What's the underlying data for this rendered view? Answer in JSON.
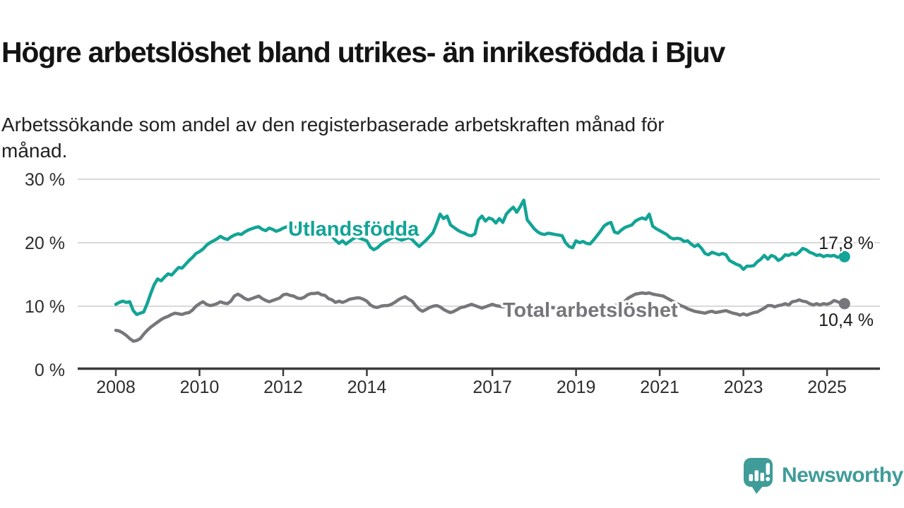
{
  "header": {
    "title": "Högre arbetslöshet bland utrikes- än inrikesfödda i Bjuv",
    "subtitle_line1": "Arbetssökande som andel av den registerbaserade arbetskraften månad för",
    "subtitle_line2": "månad."
  },
  "branding": {
    "logo_text": "Newsworthy",
    "logo_color": "#3f9c99",
    "logo_icon": "speech-bubble-bar-chart-exclamation"
  },
  "chart_data": {
    "type": "line",
    "x_unit": "month",
    "x_start": "2008-01",
    "x_end": "2025-06",
    "ylim": [
      0,
      30
    ],
    "grid": "horizontal",
    "y_ticks": [
      {
        "value": 30,
        "label": "30 %"
      },
      {
        "value": 20,
        "label": "20 %"
      },
      {
        "value": 10,
        "label": "10 %"
      },
      {
        "value": 0,
        "label": "0 %"
      }
    ],
    "x_ticks": [
      {
        "year": 2008,
        "label": "2008"
      },
      {
        "year": 2010,
        "label": "2010"
      },
      {
        "year": 2012,
        "label": "2012"
      },
      {
        "year": 2014,
        "label": "2014"
      },
      {
        "year": 2017,
        "label": "2017"
      },
      {
        "year": 2019,
        "label": "2019"
      },
      {
        "year": 2021,
        "label": "2021"
      },
      {
        "year": 2023,
        "label": "2023"
      },
      {
        "year": 2025,
        "label": "2025"
      }
    ],
    "series": [
      {
        "name": "Utlandsfödda",
        "color": "#12a496",
        "end_label": "17,8 %",
        "end_value": 17.8,
        "values": [
          10.3,
          10.6,
          10.8,
          10.6,
          10.7,
          9.3,
          8.7,
          8.9,
          9.1,
          10.4,
          12.0,
          13.4,
          14.3,
          14.0,
          14.6,
          15.1,
          14.9,
          15.5,
          16.1,
          16.0,
          16.6,
          17.2,
          17.7,
          18.3,
          18.6,
          19.0,
          19.6,
          20.0,
          20.3,
          20.6,
          21.0,
          20.7,
          20.5,
          20.9,
          21.2,
          21.4,
          21.3,
          21.7,
          22.0,
          22.2,
          22.4,
          22.5,
          22.1,
          21.9,
          22.3,
          22.1,
          21.8,
          22.0,
          22.3,
          22.5,
          22.6,
          22.4,
          22.5,
          22.8,
          22.6,
          22.3,
          22.5,
          22.2,
          22.0,
          21.8,
          21.5,
          21.2,
          21.0,
          20.4,
          19.9,
          20.3,
          19.8,
          20.2,
          20.6,
          20.9,
          20.7,
          20.5,
          20.3,
          19.3,
          18.9,
          19.2,
          19.7,
          20.1,
          20.4,
          20.7,
          20.9,
          20.6,
          20.4,
          20.6,
          20.8,
          20.5,
          19.9,
          19.4,
          19.9,
          20.4,
          21.0,
          21.6,
          23.0,
          24.5,
          23.8,
          24.2,
          22.8,
          22.4,
          22.0,
          21.7,
          21.5,
          21.2,
          21.1,
          21.4,
          23.6,
          24.2,
          23.4,
          23.9,
          23.7,
          23.1,
          23.8,
          23.2,
          24.5,
          25.1,
          25.6,
          24.8,
          25.7,
          26.7,
          23.6,
          22.9,
          22.2,
          21.7,
          21.4,
          21.3,
          21.5,
          21.4,
          21.3,
          21.2,
          21.1,
          20.0,
          19.4,
          19.2,
          20.3,
          20.0,
          20.2,
          19.9,
          19.8,
          20.4,
          21.1,
          21.8,
          22.6,
          23.0,
          23.2,
          21.7,
          21.5,
          22.0,
          22.4,
          22.6,
          22.8,
          23.4,
          23.7,
          23.9,
          23.7,
          24.5,
          22.6,
          22.2,
          21.9,
          21.6,
          21.3,
          20.8,
          20.6,
          20.7,
          20.6,
          20.2,
          20.3,
          19.8,
          19.4,
          19.7,
          19.1,
          18.3,
          18.1,
          18.5,
          18.3,
          18.1,
          18.3,
          18.1,
          17.2,
          16.9,
          16.6,
          16.4,
          15.8,
          16.3,
          16.3,
          16.4,
          17.0,
          17.4,
          18.0,
          17.4,
          18.0,
          17.8,
          17.2,
          17.5,
          18.1,
          18.0,
          18.3,
          18.1,
          18.5,
          19.1,
          18.9,
          18.5,
          18.3,
          18.0,
          18.1,
          17.8,
          18.0,
          17.9,
          18.0,
          17.7,
          17.9,
          17.8
        ]
      },
      {
        "name": "Total arbetslöshet",
        "color": "#76767b",
        "end_label": "10,4 %",
        "end_value": 10.4,
        "values": [
          6.2,
          6.1,
          5.8,
          5.4,
          4.9,
          4.5,
          4.6,
          4.9,
          5.6,
          6.2,
          6.7,
          7.1,
          7.5,
          7.9,
          8.2,
          8.4,
          8.7,
          8.9,
          8.8,
          8.7,
          8.9,
          9.0,
          9.4,
          10.0,
          10.4,
          10.7,
          10.3,
          10.1,
          10.2,
          10.4,
          10.7,
          10.5,
          10.4,
          10.8,
          11.6,
          11.9,
          11.6,
          11.2,
          11.0,
          11.2,
          11.4,
          11.6,
          11.2,
          10.9,
          10.7,
          10.9,
          11.1,
          11.3,
          11.8,
          11.9,
          11.7,
          11.6,
          11.3,
          11.2,
          11.4,
          11.8,
          12.0,
          12.0,
          12.1,
          11.8,
          11.7,
          11.2,
          11.0,
          10.6,
          10.8,
          10.6,
          10.8,
          11.1,
          11.2,
          11.3,
          11.3,
          11.1,
          10.8,
          10.2,
          9.9,
          9.8,
          10.0,
          10.1,
          10.1,
          10.3,
          10.6,
          11.0,
          11.3,
          11.5,
          11.1,
          10.8,
          10.1,
          9.5,
          9.2,
          9.5,
          9.8,
          10.0,
          10.1,
          9.9,
          9.5,
          9.2,
          9.0,
          9.2,
          9.5,
          9.8,
          9.9,
          10.1,
          10.3,
          10.1,
          9.9,
          9.7,
          9.9,
          10.1,
          10.3,
          10.1,
          10.0,
          9.9,
          10.0,
          10.1,
          9.9,
          9.8,
          9.9,
          10.0,
          9.8,
          9.7,
          9.7,
          9.6,
          9.5,
          9.6,
          9.7,
          9.8,
          9.7,
          9.5,
          9.4,
          9.5,
          9.6,
          9.5,
          9.4,
          9.2,
          9.0,
          8.9,
          9.0,
          9.2,
          9.3,
          9.2,
          9.4,
          9.6,
          9.8,
          10.1,
          10.2,
          10.3,
          10.8,
          11.3,
          11.6,
          11.9,
          12.0,
          12.1,
          12.0,
          12.1,
          11.9,
          11.8,
          11.7,
          11.6,
          11.3,
          11.0,
          10.7,
          10.4,
          10.1,
          9.9,
          9.6,
          9.4,
          9.2,
          9.1,
          9.0,
          8.9,
          9.1,
          9.2,
          9.0,
          9.1,
          9.2,
          9.3,
          9.1,
          8.9,
          8.8,
          8.6,
          8.8,
          8.6,
          8.8,
          9.0,
          9.1,
          9.4,
          9.7,
          10.1,
          10.1,
          9.9,
          10.1,
          10.2,
          10.4,
          10.2,
          10.7,
          10.8,
          11.0,
          10.8,
          10.7,
          10.4,
          10.2,
          10.4,
          10.2,
          10.4,
          10.3,
          10.5,
          10.9,
          10.7,
          10.5,
          10.4
        ]
      }
    ],
    "style": {
      "grid_color": "#d9d9d9",
      "axis_color": "#3b3b3b",
      "tick_label_color": "#2d2d2d",
      "end_label_color": "#1a1a1a"
    }
  }
}
